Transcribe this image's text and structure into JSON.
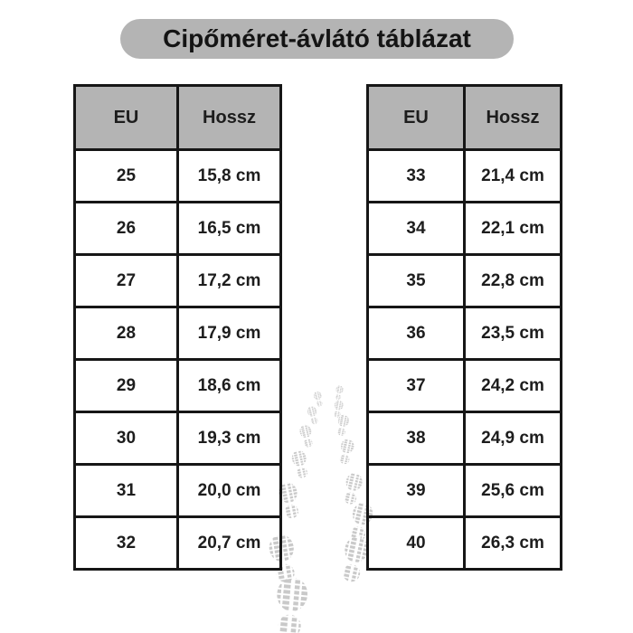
{
  "title": "Cipőméret-ávlátó táblázat",
  "chart_data": [
    {
      "type": "table",
      "title": "Cipőméret-ávlátó táblázat",
      "columns": [
        "EU",
        "Hossz"
      ],
      "rows": [
        [
          "25",
          "15,8 cm"
        ],
        [
          "26",
          "16,5 cm"
        ],
        [
          "27",
          "17,2 cm"
        ],
        [
          "28",
          "17,9 cm"
        ],
        [
          "29",
          "18,6 cm"
        ],
        [
          "30",
          "19,3 cm"
        ],
        [
          "31",
          "20,0 cm"
        ],
        [
          "32",
          "20,7 cm"
        ]
      ]
    },
    {
      "type": "table",
      "columns": [
        "EU",
        "Hossz"
      ],
      "rows": [
        [
          "33",
          "21,4 cm"
        ],
        [
          "34",
          "22,1 cm"
        ],
        [
          "35",
          "22,8 cm"
        ],
        [
          "36",
          "23,5 cm"
        ],
        [
          "37",
          "24,2 cm"
        ],
        [
          "38",
          "24,9 cm"
        ],
        [
          "39",
          "25,6 cm"
        ],
        [
          "40",
          "26,3 cm"
        ]
      ]
    }
  ],
  "decoration": {
    "name": "footprints-icon"
  },
  "colors": {
    "background": "#ffffff",
    "title_bg": "#b4b4b4",
    "header_bg": "#b4b4b4",
    "border": "#161616",
    "text": "#1d1d1d",
    "footprint": "#c9c9c9"
  }
}
